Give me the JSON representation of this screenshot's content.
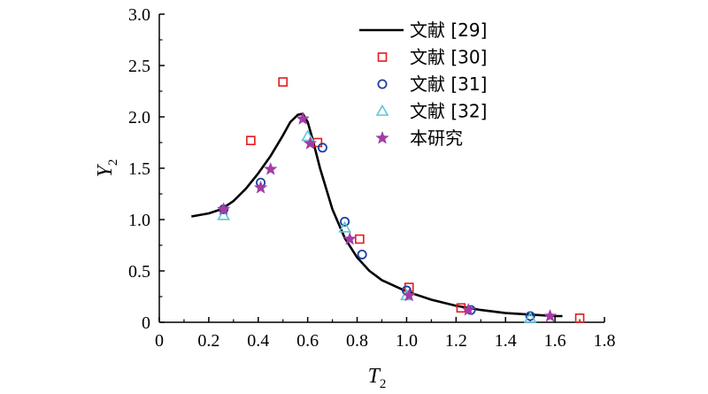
{
  "chart_data": {
    "type": "scatter",
    "xlim": [
      0,
      1.8
    ],
    "ylim": [
      0,
      3.0
    ],
    "xticks": [
      "0",
      "0.2",
      "0.4",
      "0.6",
      "0.8",
      "1.0",
      "1.2",
      "1.4",
      "1.6",
      "1.8"
    ],
    "yticks": [
      "0",
      "0.5",
      "1.0",
      "1.5",
      "2.0",
      "2.5",
      "3.0"
    ],
    "xlabel": {
      "main": "T",
      "sub": "2"
    },
    "ylabel": {
      "main": "Y",
      "sub": "2"
    },
    "grid": false,
    "legend_position": "top-right",
    "series": [
      {
        "name": "文献 [29]",
        "marker": "line",
        "color": "#000000",
        "x": [
          0.13,
          0.2,
          0.25,
          0.3,
          0.35,
          0.4,
          0.45,
          0.5,
          0.53,
          0.56,
          0.58,
          0.6,
          0.62,
          0.65,
          0.7,
          0.75,
          0.8,
          0.85,
          0.9,
          1.0,
          1.1,
          1.2,
          1.3,
          1.4,
          1.5,
          1.6,
          1.63
        ],
        "y": [
          1.03,
          1.06,
          1.1,
          1.18,
          1.3,
          1.45,
          1.62,
          1.82,
          1.95,
          2.02,
          2.03,
          1.95,
          1.78,
          1.5,
          1.1,
          0.82,
          0.63,
          0.5,
          0.41,
          0.3,
          0.22,
          0.16,
          0.12,
          0.09,
          0.075,
          0.06,
          0.06
        ]
      },
      {
        "name": "文献 [30]",
        "marker": "square",
        "color": "#e31a1c",
        "x": [
          0.37,
          0.5,
          0.64,
          0.81,
          1.01,
          1.22,
          1.7
        ],
        "y": [
          1.77,
          2.34,
          1.75,
          0.81,
          0.34,
          0.14,
          0.04
        ]
      },
      {
        "name": "文献 [31]",
        "marker": "circle",
        "color": "#1f3fa0",
        "x": [
          0.26,
          0.41,
          0.66,
          0.75,
          0.82,
          1.0,
          1.26,
          1.5
        ],
        "y": [
          1.1,
          1.36,
          1.7,
          0.98,
          0.66,
          0.31,
          0.12,
          0.06
        ]
      },
      {
        "name": "文献 [32]",
        "marker": "triangle",
        "color": "#5bc8d6",
        "x": [
          0.26,
          0.6,
          0.75,
          1.0,
          1.5
        ],
        "y": [
          1.04,
          1.81,
          0.92,
          0.26,
          0.04
        ]
      },
      {
        "name": "本研究",
        "marker": "star",
        "color": "#a23ca6",
        "x": [
          0.26,
          0.41,
          0.45,
          0.58,
          0.61,
          0.77,
          1.01,
          1.25,
          1.58
        ],
        "y": [
          1.1,
          1.31,
          1.49,
          1.98,
          1.74,
          0.81,
          0.26,
          0.12,
          0.06
        ]
      }
    ]
  }
}
